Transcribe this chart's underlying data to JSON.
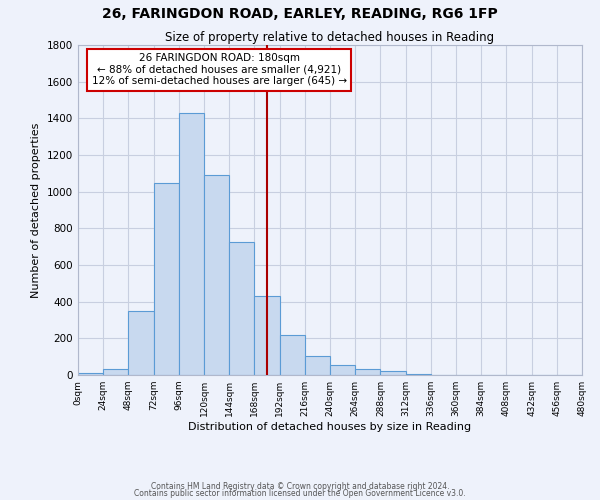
{
  "title": "26, FARINGDON ROAD, EARLEY, READING, RG6 1FP",
  "subtitle": "Size of property relative to detached houses in Reading",
  "xlabel": "Distribution of detached houses by size in Reading",
  "ylabel": "Number of detached properties",
  "bin_edges": [
    0,
    24,
    48,
    72,
    96,
    120,
    144,
    168,
    192,
    216,
    240,
    264,
    288,
    312,
    336,
    360,
    384,
    408,
    432,
    456,
    480
  ],
  "bar_heights": [
    10,
    35,
    350,
    1050,
    1430,
    1090,
    725,
    430,
    220,
    105,
    55,
    35,
    20,
    5,
    0,
    0,
    0,
    0,
    0,
    0
  ],
  "tick_labels": [
    "0sqm",
    "24sqm",
    "48sqm",
    "72sqm",
    "96sqm",
    "120sqm",
    "144sqm",
    "168sqm",
    "192sqm",
    "216sqm",
    "240sqm",
    "264sqm",
    "288sqm",
    "312sqm",
    "336sqm",
    "360sqm",
    "384sqm",
    "408sqm",
    "432sqm",
    "456sqm",
    "480sqm"
  ],
  "bar_color": "#c8d9ef",
  "bar_edge_color": "#5b9bd5",
  "background_color": "#eef2fb",
  "grid_color": "#c8cfe0",
  "vline_x": 180,
  "vline_color": "#aa0000",
  "ylim": [
    0,
    1800
  ],
  "yticks": [
    0,
    200,
    400,
    600,
    800,
    1000,
    1200,
    1400,
    1600,
    1800
  ],
  "annotation_title": "26 FARINGDON ROAD: 180sqm",
  "annotation_line1": "← 88% of detached houses are smaller (4,921)",
  "annotation_line2": "12% of semi-detached houses are larger (645) →",
  "annotation_box_edge": "#cc0000",
  "footer1": "Contains HM Land Registry data © Crown copyright and database right 2024.",
  "footer2": "Contains public sector information licensed under the Open Government Licence v3.0."
}
